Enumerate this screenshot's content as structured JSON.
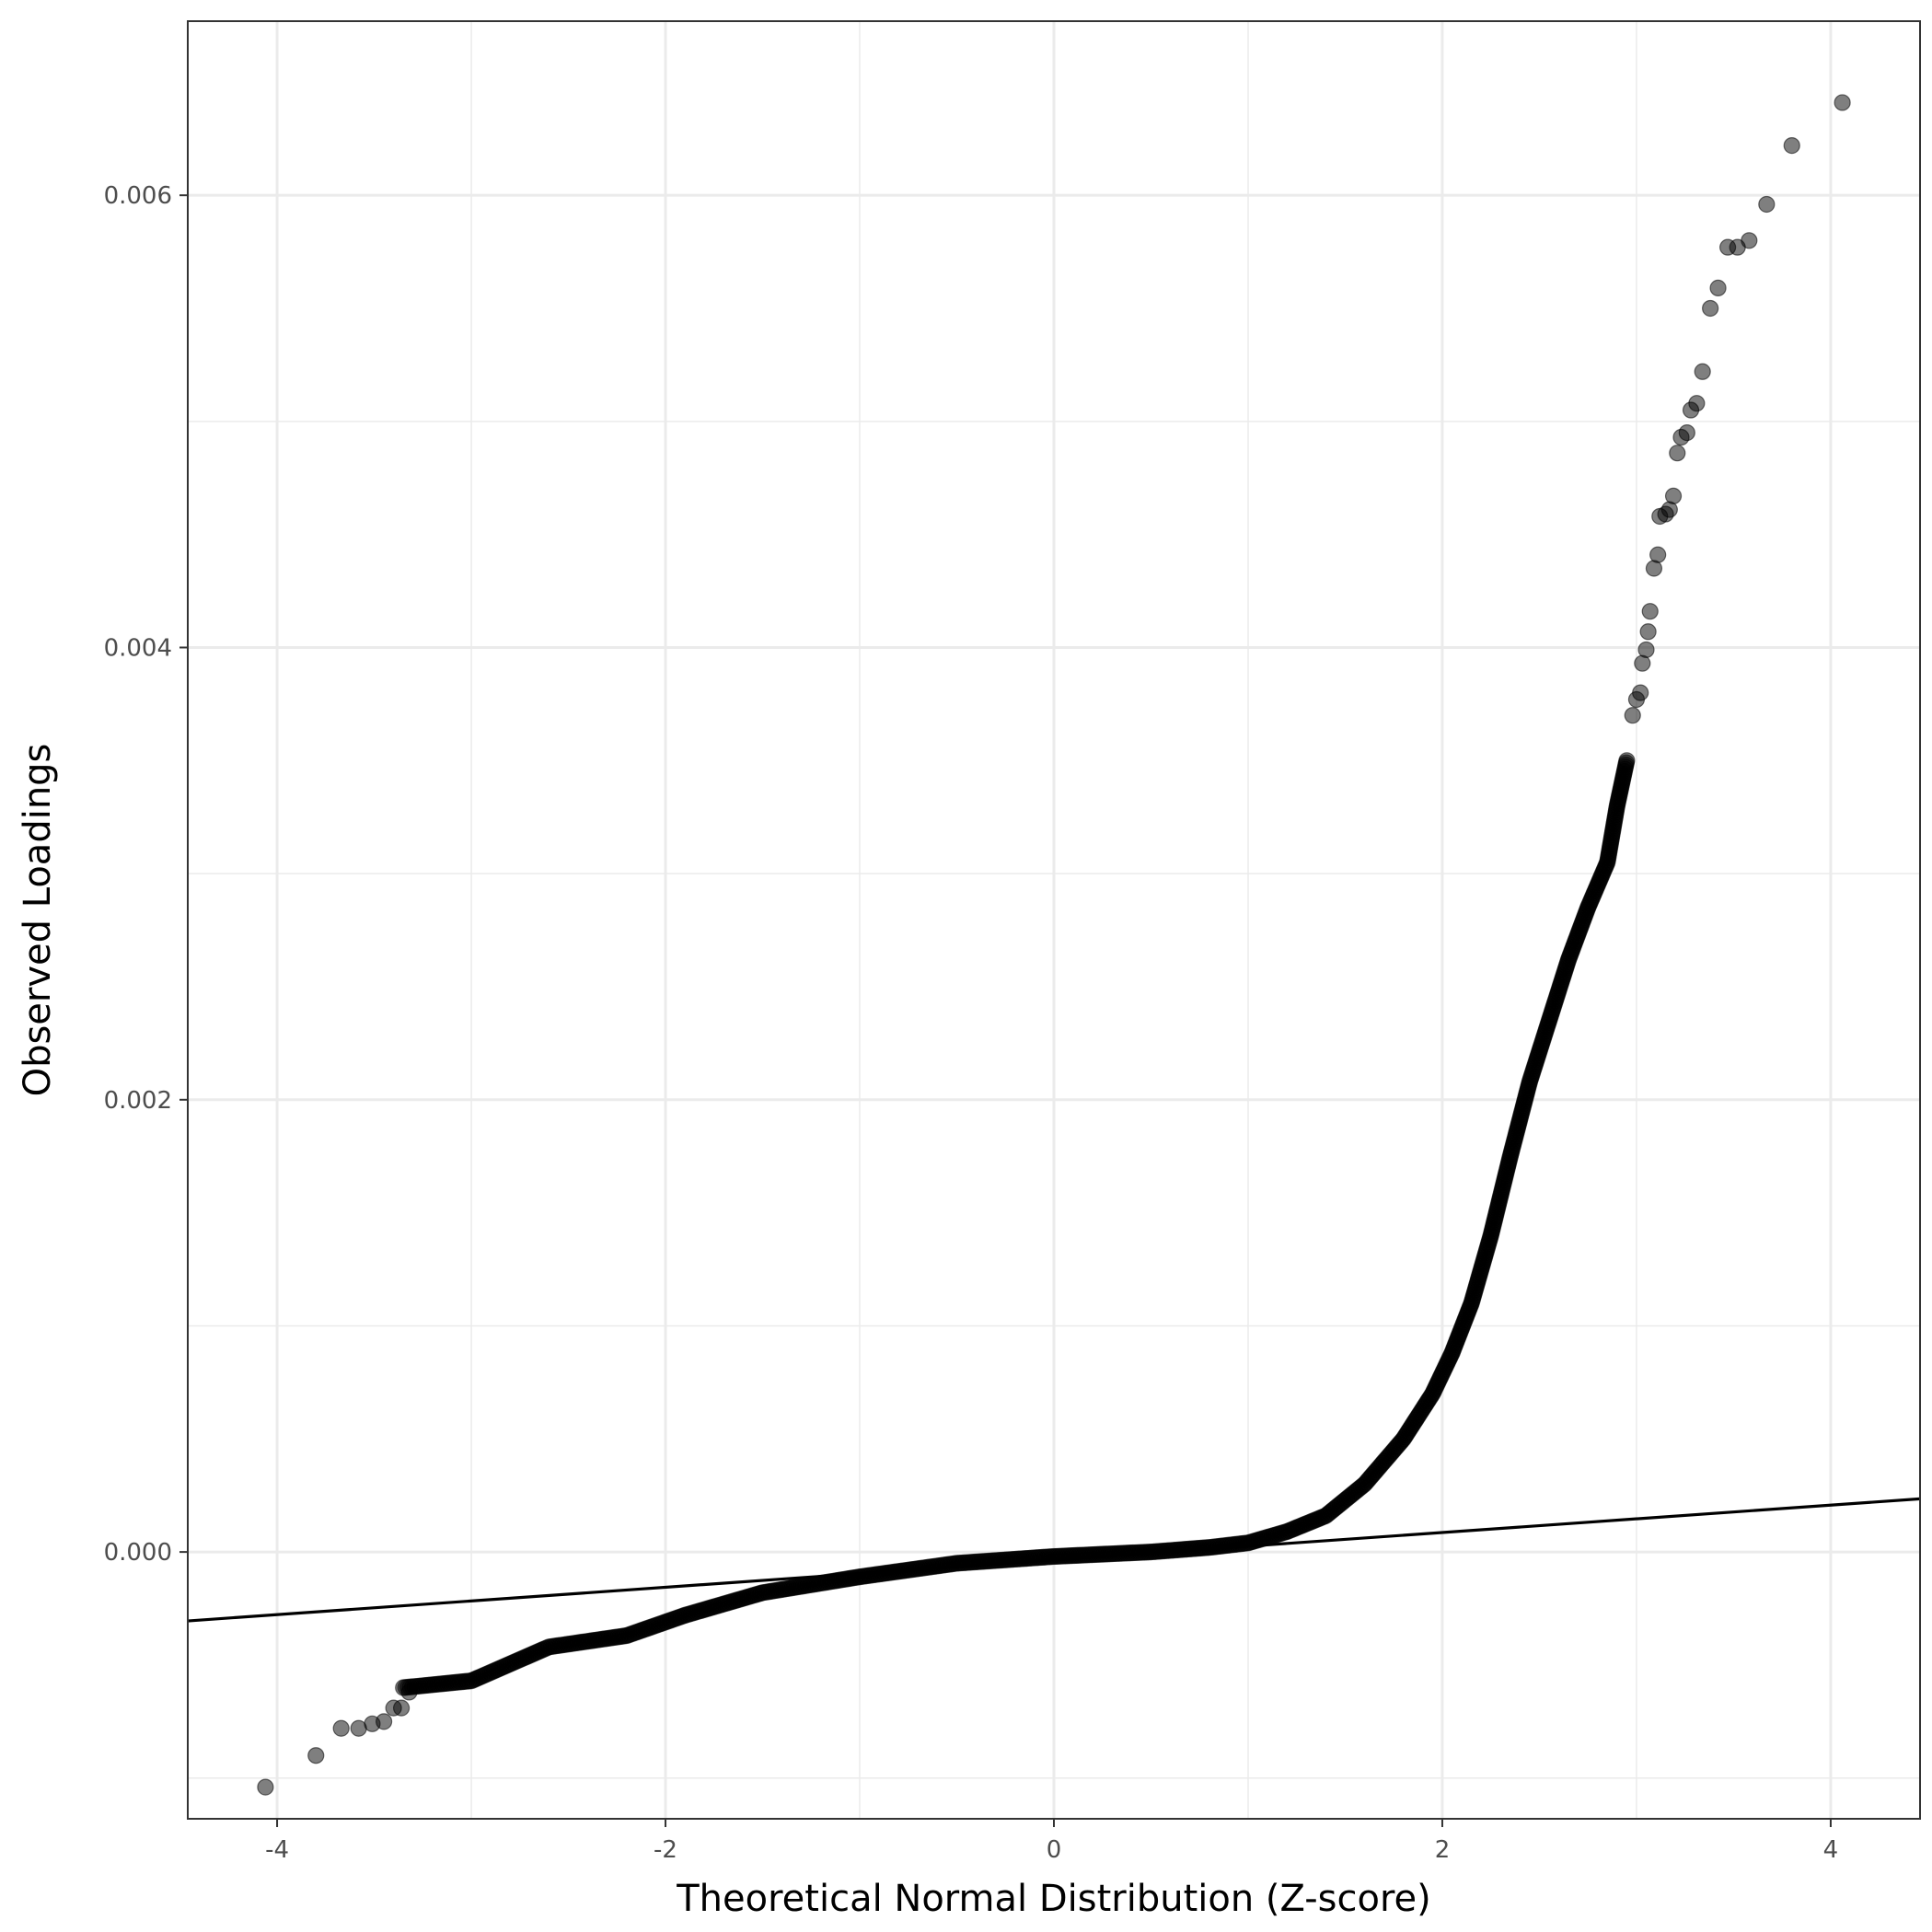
{
  "chart_data": {
    "type": "scatter",
    "title": "",
    "xlabel": "Theoretical Normal Distribution (Z-score)",
    "ylabel": "Observed Loadings",
    "xlim": [
      -4.46,
      4.46
    ],
    "ylim": [
      -0.00118,
      0.00677
    ],
    "x_ticks": [
      -4,
      -2,
      0,
      2,
      4
    ],
    "x_tick_labels": [
      "-4",
      "-2",
      "0",
      "2",
      "4"
    ],
    "y_ticks": [
      0.0,
      0.002,
      0.004,
      0.006
    ],
    "y_tick_labels": [
      "0.000",
      "0.002",
      "0.004",
      "0.006"
    ],
    "grid": true,
    "reference_line": {
      "x": [
        -4.46,
        4.46
      ],
      "y": [
        -0.000305,
        0.000235
      ]
    },
    "curve_key_points": [
      [
        -3.35,
        -0.0006
      ],
      [
        -3.0,
        -0.00057
      ],
      [
        -2.6,
        -0.00042
      ],
      [
        -2.2,
        -0.00037
      ],
      [
        -1.9,
        -0.00028
      ],
      [
        -1.5,
        -0.00018
      ],
      [
        -1.0,
        -0.00011
      ],
      [
        -0.5,
        -5e-05
      ],
      [
        0.0,
        -2e-05
      ],
      [
        0.5,
        0.0
      ],
      [
        0.8,
        2e-05
      ],
      [
        1.0,
        4e-05
      ],
      [
        1.2,
        9e-05
      ],
      [
        1.4,
        0.00016
      ],
      [
        1.6,
        0.0003
      ],
      [
        1.8,
        0.0005
      ],
      [
        1.95,
        0.0007
      ],
      [
        2.05,
        0.00088
      ],
      [
        2.15,
        0.0011
      ],
      [
        2.25,
        0.0014
      ],
      [
        2.35,
        0.00175
      ],
      [
        2.45,
        0.00208
      ],
      [
        2.55,
        0.00235
      ],
      [
        2.65,
        0.00262
      ],
      [
        2.75,
        0.00285
      ],
      [
        2.85,
        0.00305
      ],
      [
        2.9,
        0.0033
      ],
      [
        2.95,
        0.0035
      ]
    ],
    "points": [
      [
        -4.06,
        -0.00104
      ],
      [
        -3.8,
        -0.0009
      ],
      [
        -3.67,
        -0.00078
      ],
      [
        -3.58,
        -0.00078
      ],
      [
        -3.51,
        -0.00076
      ],
      [
        -3.45,
        -0.00075
      ],
      [
        -3.4,
        -0.00069
      ],
      [
        -3.36,
        -0.00069
      ],
      [
        -3.32,
        -0.00062
      ],
      [
        2.98,
        0.0037
      ],
      [
        3.0,
        0.00377
      ],
      [
        3.02,
        0.0038
      ],
      [
        3.03,
        0.00393
      ],
      [
        3.05,
        0.00399
      ],
      [
        3.06,
        0.00407
      ],
      [
        3.07,
        0.00416
      ],
      [
        3.09,
        0.00435
      ],
      [
        3.11,
        0.00441
      ],
      [
        3.12,
        0.00458
      ],
      [
        3.15,
        0.00459
      ],
      [
        3.17,
        0.00461
      ],
      [
        3.19,
        0.00467
      ],
      [
        3.21,
        0.00486
      ],
      [
        3.23,
        0.00493
      ],
      [
        3.26,
        0.00495
      ],
      [
        3.28,
        0.00505
      ],
      [
        3.31,
        0.00508
      ],
      [
        3.34,
        0.00522
      ],
      [
        3.38,
        0.0055
      ],
      [
        3.42,
        0.00559
      ],
      [
        3.47,
        0.00577
      ],
      [
        3.52,
        0.00577
      ],
      [
        3.58,
        0.0058
      ],
      [
        3.67,
        0.00596
      ],
      [
        3.8,
        0.00622
      ],
      [
        4.06,
        0.00641
      ]
    ]
  }
}
